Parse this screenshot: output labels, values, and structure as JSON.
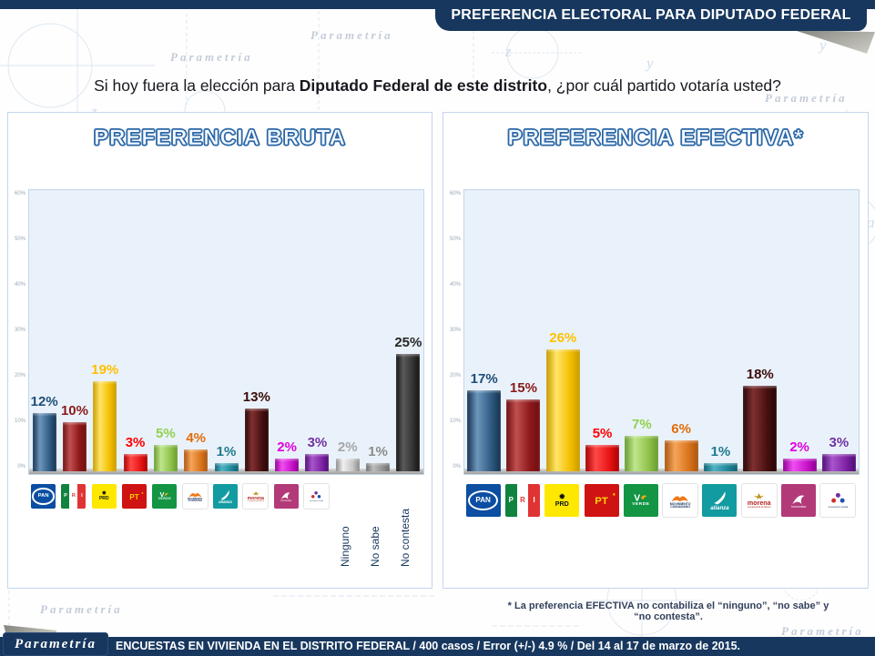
{
  "header": {
    "title": "PREFERENCIA ELECTORAL PARA DIPUTADO FEDERAL"
  },
  "question": {
    "part1": "Si hoy fuera la elección para ",
    "part2_bold": "Diputado Federal de este distrito",
    "part3": ", ¿por cuál partido votaría usted?"
  },
  "watermark": "Parametría",
  "footnote": "* La preferencia EFECTIVA no contabiliza el “ninguno”, “no sabe” y “no contesta”.",
  "footer": {
    "brand": "Parametría",
    "text": "ENCUESTAS EN VIVIENDA EN EL DISTRITO FEDERAL / 400 casos / Error (+/-) 4.9 % / Del 14 al 17 de marzo de 2015."
  },
  "colors": {
    "navy": "#17375e",
    "title_outline": "#2a66a5",
    "plot_bg": "#e9f2fa"
  },
  "parties": [
    {
      "id": "pan",
      "name": "PAN",
      "bar": [
        "#16324f",
        "#6d96bd",
        "#2f5a82"
      ],
      "label_color": "#1F4E79",
      "logo": {
        "type": "pan",
        "bg": "#0b4ea2",
        "text": "PAN"
      }
    },
    {
      "id": "pri",
      "name": "PRI",
      "bar": [
        "#6e1012",
        "#c05050",
        "#8c1618"
      ],
      "label_color": "#8B1A1A",
      "logo": {
        "type": "pri",
        "text": "PRI",
        "colors": [
          "#10833f",
          "#ffffff",
          "#e03434"
        ]
      }
    },
    {
      "id": "prd",
      "name": "PRD",
      "bar": [
        "#c79b00",
        "#ffe566",
        "#f2bd00"
      ],
      "label_color": "#FFC000",
      "logo": {
        "type": "prd",
        "bg": "#ffe800",
        "text": "PRD",
        "sun_icon": "✹"
      }
    },
    {
      "id": "pt",
      "name": "PT",
      "bar": [
        "#a80000",
        "#ff4848",
        "#e81414"
      ],
      "label_color": "#FF0000",
      "logo": {
        "type": "pt",
        "bg": "#cf1212",
        "text": "PT",
        "star_icon": "★"
      }
    },
    {
      "id": "verde",
      "name": "VERDE",
      "bar": [
        "#679a2e",
        "#c0e68c",
        "#8fc24a"
      ],
      "label_color": "#92D050",
      "logo": {
        "type": "verde",
        "bg": "#139544",
        "text": "VERDE",
        "initial": "V"
      }
    },
    {
      "id": "mc",
      "name": "MOVIMIENTO CIUDADANO",
      "bar": [
        "#a85510",
        "#f5a55a",
        "#d9731c"
      ],
      "label_color": "#E36C0A",
      "logo": {
        "type": "mc",
        "bg": "#ffffff",
        "text": "MOVIMIENTO CIUDADANO",
        "accent": "#f07818"
      }
    },
    {
      "id": "panal",
      "name": "NUEVA ALIANZA",
      "bar": [
        "#0f6272",
        "#4fb3c6",
        "#1e8598"
      ],
      "label_color": "#1F7A8C",
      "logo": {
        "type": "alianza",
        "bg": "#129ba1",
        "text": "alianza"
      }
    },
    {
      "id": "morena",
      "name": "MORENA",
      "bar": [
        "#260505",
        "#803030",
        "#471010"
      ],
      "label_color": "#3B0A0A",
      "logo": {
        "type": "morena",
        "bg": "#ffffff",
        "text": "morena",
        "tagline": "La esperanza de México",
        "accent": "#c09020"
      }
    },
    {
      "id": "humanista",
      "name": "HUMANISTA",
      "bar": [
        "#8c0090",
        "#f24df2",
        "#c813c8"
      ],
      "label_color": "#E000E0",
      "logo": {
        "type": "humanista",
        "bg": "#b23a78",
        "text": "humanista"
      }
    },
    {
      "id": "es",
      "name": "ENCUENTRO SOCIAL",
      "bar": [
        "#4d0d73",
        "#a855cc",
        "#7d22a3"
      ],
      "label_color": "#7030A0",
      "logo": {
        "type": "es",
        "bg": "#ffffff",
        "text": "encuentro social"
      }
    },
    {
      "id": "ninguno",
      "name": "Ninguno",
      "bar": [
        "#8a8a8a",
        "#f0f0f0",
        "#c4c4c4"
      ],
      "label_color": "#A6A6A6",
      "text_label": "Ninguno"
    },
    {
      "id": "nosabe",
      "name": "No sabe",
      "bar": [
        "#6b6b6b",
        "#bdbdbd",
        "#8f8f8f"
      ],
      "label_color": "#8C8C8C",
      "text_label": "No sabe"
    },
    {
      "id": "nocontesta",
      "name": "No contesta",
      "bar": [
        "#141414",
        "#5a5a5a",
        "#323232"
      ],
      "label_color": "#262626",
      "text_label": "No contesta"
    }
  ],
  "chart_data": [
    {
      "type": "bar",
      "title": "PREFERENCIA BRUTA",
      "xlabel": "",
      "ylabel": "",
      "ylim": [
        0,
        60
      ],
      "grid": false,
      "legend": "none",
      "y_ticks": [
        "60%",
        "50%",
        "40%",
        "30%",
        "20%",
        "10%",
        "0%"
      ],
      "categories": [
        "PAN",
        "PRI",
        "PRD",
        "PT",
        "VERDE",
        "MOVIMIENTO CIUDADANO",
        "NUEVA ALIANZA",
        "MORENA",
        "HUMANISTA",
        "ENCUENTRO SOCIAL",
        "Ninguno",
        "No sabe",
        "No contesta"
      ],
      "values": [
        12,
        10,
        19,
        3,
        5,
        4,
        1,
        13,
        2,
        3,
        2,
        1,
        25
      ],
      "items": [
        {
          "party": "pan",
          "value": 12,
          "label": "12%"
        },
        {
          "party": "pri",
          "value": 10,
          "label": "10%"
        },
        {
          "party": "prd",
          "value": 19,
          "label": "19%"
        },
        {
          "party": "pt",
          "value": 3,
          "label": "3%"
        },
        {
          "party": "verde",
          "value": 5,
          "label": "5%"
        },
        {
          "party": "mc",
          "value": 4,
          "label": "4%"
        },
        {
          "party": "panal",
          "value": 1,
          "label": "1%"
        },
        {
          "party": "morena",
          "value": 13,
          "label": "13%"
        },
        {
          "party": "humanista",
          "value": 2,
          "label": "2%"
        },
        {
          "party": "es",
          "value": 3,
          "label": "3%"
        },
        {
          "party": "ninguno",
          "value": 2,
          "label": "2%"
        },
        {
          "party": "nosabe",
          "value": 1,
          "label": "1%"
        },
        {
          "party": "nocontesta",
          "value": 25,
          "label": "25%"
        }
      ]
    },
    {
      "type": "bar",
      "title": "PREFERENCIA EFECTIVA*",
      "xlabel": "",
      "ylabel": "",
      "ylim": [
        0,
        60
      ],
      "grid": false,
      "legend": "none",
      "y_ticks": [
        "60%",
        "50%",
        "40%",
        "30%",
        "20%",
        "10%",
        "0%"
      ],
      "categories": [
        "PAN",
        "PRI",
        "PRD",
        "PT",
        "VERDE",
        "MOVIMIENTO CIUDADANO",
        "NUEVA ALIANZA",
        "MORENA",
        "HUMANISTA",
        "ENCUENTRO SOCIAL"
      ],
      "values": [
        17,
        15,
        26,
        5,
        7,
        6,
        1,
        18,
        2,
        3
      ],
      "items": [
        {
          "party": "pan",
          "value": 17,
          "label": "17%"
        },
        {
          "party": "pri",
          "value": 15,
          "label": "15%"
        },
        {
          "party": "prd",
          "value": 26,
          "label": "26%"
        },
        {
          "party": "pt",
          "value": 5,
          "label": "5%"
        },
        {
          "party": "verde",
          "value": 7,
          "label": "7%"
        },
        {
          "party": "mc",
          "value": 6,
          "label": "6%"
        },
        {
          "party": "panal",
          "value": 1,
          "label": "1%"
        },
        {
          "party": "morena",
          "value": 18,
          "label": "18%"
        },
        {
          "party": "humanista",
          "value": 2,
          "label": "2%"
        },
        {
          "party": "es",
          "value": 3,
          "label": "3%"
        }
      ]
    }
  ]
}
